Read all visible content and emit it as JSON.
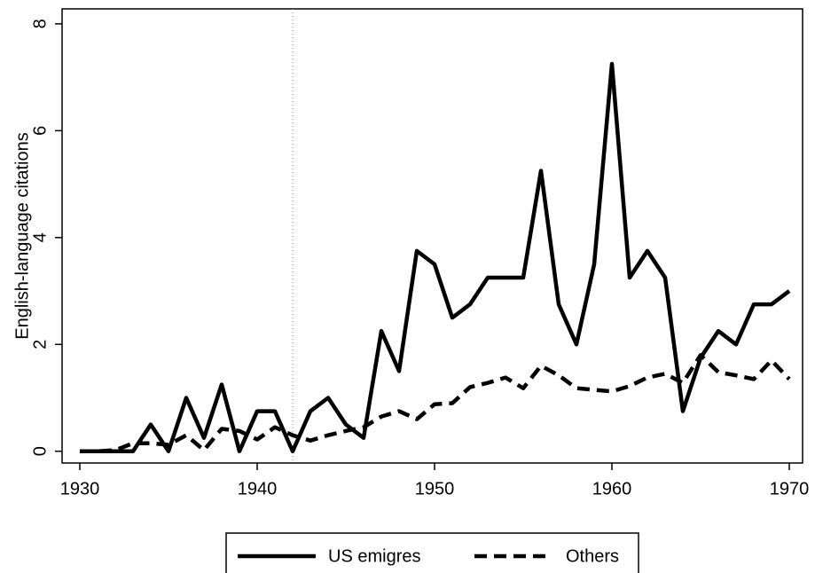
{
  "chart_data": {
    "type": "line",
    "y_label": "English-language citations",
    "x": [
      1930,
      1931,
      1932,
      1933,
      1934,
      1935,
      1936,
      1937,
      1938,
      1939,
      1940,
      1941,
      1942,
      1943,
      1944,
      1945,
      1946,
      1947,
      1948,
      1949,
      1950,
      1951,
      1952,
      1953,
      1954,
      1955,
      1956,
      1957,
      1958,
      1959,
      1960,
      1961,
      1962,
      1963,
      1964,
      1965,
      1966,
      1967,
      1968,
      1969,
      1970
    ],
    "series": [
      {
        "name": "US emigres",
        "color": "#000000",
        "style": "solid",
        "values": [
          0,
          0,
          0,
          0,
          0.5,
          0,
          1.0,
          0.25,
          1.25,
          0,
          0.75,
          0.75,
          0,
          0.75,
          1.0,
          0.5,
          0.25,
          2.25,
          1.5,
          3.75,
          3.5,
          2.5,
          2.75,
          3.25,
          3.25,
          3.25,
          5.25,
          2.75,
          2.0,
          3.5,
          7.25,
          3.25,
          3.75,
          3.25,
          0.75,
          1.75,
          2.25,
          2.0,
          2.75,
          2.75,
          3.0
        ]
      },
      {
        "name": "Others",
        "color": "#000000",
        "style": "dashed",
        "values": [
          0,
          0,
          0.02,
          0.15,
          0.15,
          0.12,
          0.3,
          0.02,
          0.42,
          0.38,
          0.22,
          0.45,
          0.3,
          0.2,
          0.3,
          0.38,
          0.45,
          0.65,
          0.75,
          0.6,
          0.88,
          0.9,
          1.2,
          1.28,
          1.38,
          1.18,
          1.6,
          1.42,
          1.18,
          1.15,
          1.12,
          1.22,
          1.38,
          1.45,
          1.28,
          1.8,
          1.48,
          1.42,
          1.35,
          1.7,
          1.35
        ]
      }
    ],
    "reference_x": 1942,
    "xlim": [
      1929,
      1970.75
    ],
    "xticks": [
      1930,
      1940,
      1950,
      1960,
      1970
    ],
    "ylim": [
      -0.22,
      8.28
    ],
    "yticks": [
      0,
      2,
      4,
      6,
      8
    ],
    "legend": "bottom"
  }
}
